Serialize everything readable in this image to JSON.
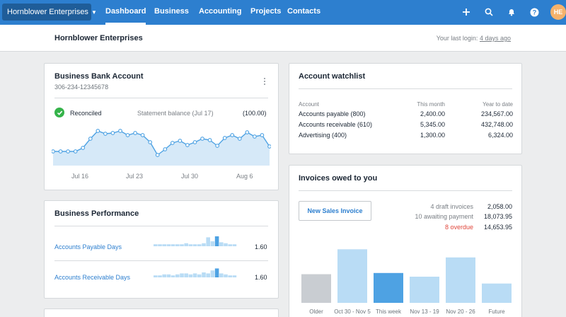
{
  "nav": {
    "org_switcher": "Hornblower Enterprises",
    "links": [
      "Dashboard",
      "Business",
      "Accounting",
      "Projects",
      "Contacts"
    ],
    "active": "Dashboard",
    "avatar_initials": "HE",
    "icons": [
      "plus-icon",
      "search-icon",
      "bell-icon",
      "help-icon"
    ]
  },
  "header": {
    "org_name": "Hornblower Enterprises",
    "last_login_prefix": "Your last login:",
    "last_login_ago": "4 days ago"
  },
  "bank": {
    "title": "Business Bank Account",
    "account_number": "306-234-12345678",
    "reconciled_label": "Reconciled",
    "statement_label": "Statement balance (Jul 17)",
    "statement_value": "(100.00)",
    "x_labels": [
      "Jul 16",
      "Jul 23",
      "Jul 30",
      "Aug 6"
    ],
    "balance_trend": [
      22,
      22,
      22,
      22,
      27,
      40,
      51,
      47,
      48,
      51,
      45,
      48,
      45,
      35,
      17,
      25,
      34,
      37,
      31,
      35,
      40,
      38,
      30,
      41,
      45,
      40,
      49,
      43,
      45,
      29
    ]
  },
  "performance": {
    "title": "Business Performance",
    "rows": [
      {
        "label": "Accounts Payable Days",
        "value": "1.60",
        "bars": [
          2,
          2,
          2,
          2,
          2,
          2,
          2,
          3,
          2,
          2,
          2,
          3,
          9,
          5,
          10,
          4,
          3,
          2,
          2
        ]
      },
      {
        "label": "Accounts Receivable Days",
        "value": "1.60",
        "bars": [
          2,
          2,
          3,
          3,
          2,
          3,
          4,
          4,
          3,
          4,
          3,
          5,
          4,
          7,
          9,
          4,
          3,
          2,
          2
        ]
      }
    ],
    "highlight_index": 14
  },
  "watchlist": {
    "title": "Account watchlist",
    "columns": [
      "Account",
      "This month",
      "Year to date"
    ],
    "rows": [
      {
        "account": "Accounts payable (800)",
        "this_month": "2,400.00",
        "ytd": "234,567.00"
      },
      {
        "account": "Accounts receivable (610)",
        "this_month": "5,345.00",
        "ytd": "432,748.00"
      },
      {
        "account": "Advertising (400)",
        "this_month": "1,300.00",
        "ytd": "6,324.00"
      }
    ]
  },
  "invoices": {
    "title": "Invoices owed to you",
    "new_button": "New Sales Invoice",
    "summary": [
      {
        "label": "4 draft invoices",
        "value": "2,058.00",
        "overdue": false
      },
      {
        "label": "10 awaiting payment",
        "value": "18,073.95",
        "overdue": false
      },
      {
        "label": "8 overdue",
        "value": "14,653.95",
        "overdue": true
      }
    ]
  },
  "chart_data": {
    "type": "bar",
    "categories": [
      "Older",
      "Oct 30 - Nov 5",
      "This week",
      "Nov 13 - 19",
      "Nov 20 - 26",
      "Future"
    ],
    "values": [
      46,
      86,
      48,
      42,
      73,
      31
    ],
    "ylim": [
      0,
      100
    ],
    "colors": [
      "#c9cdd2",
      "#b9dcf5",
      "#4ea2e3",
      "#b9dcf5",
      "#b9dcf5",
      "#b9dcf5"
    ]
  },
  "colors": {
    "accent": "#2d7fcf",
    "nav_dark": "#1f5d99",
    "overdue": "#e0473b",
    "reconciled": "#35b34a"
  }
}
